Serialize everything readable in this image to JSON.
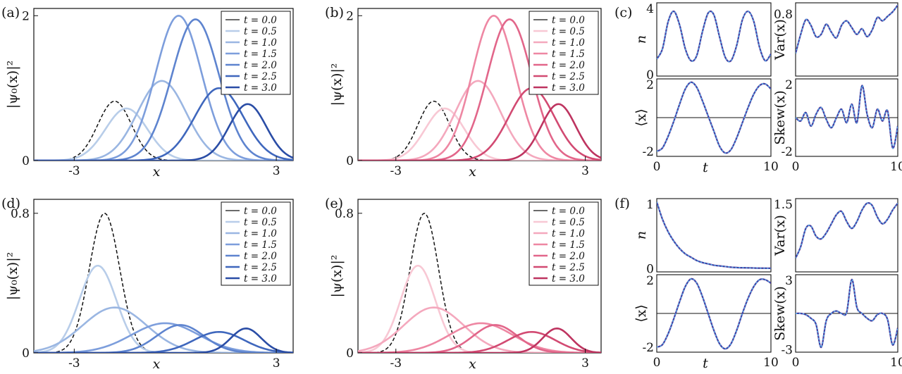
{
  "figure": {
    "panels": [
      {
        "id": "a",
        "label": "(a)",
        "xlabel": "x",
        "ylabel": "|ψ₀(x)|²",
        "xticks": [
          "-3",
          "3"
        ],
        "yticks": [
          "0",
          "2"
        ],
        "legend": [
          "t = 0.0",
          "t = 0.5",
          "t = 1.0",
          "t = 1.5",
          "t = 2.0",
          "t = 2.5",
          "t = 3.0"
        ]
      },
      {
        "id": "b",
        "label": "(b)",
        "xlabel": "x",
        "ylabel": "|ψ(x)|²",
        "xticks": [
          "-3",
          "3"
        ],
        "yticks": [
          "0",
          "2"
        ],
        "legend": [
          "t = 0.0",
          "t = 0.5",
          "t = 1.0",
          "t = 1.5",
          "t = 2.0",
          "t = 2.5",
          "t = 3.0"
        ]
      },
      {
        "id": "c",
        "label": "(c)"
      },
      {
        "id": "d",
        "label": "(d)",
        "xlabel": "x",
        "ylabel": "|ψ₀(x)|²",
        "xticks": [
          "-3",
          "3"
        ],
        "yticks": [
          "0",
          "0.8"
        ],
        "legend": [
          "t = 0.0",
          "t = 0.5",
          "t = 1.0",
          "t = 1.5",
          "t = 2.0",
          "t = 2.5",
          "t = 3.0"
        ]
      },
      {
        "id": "e",
        "label": "(e)",
        "xlabel": "x",
        "ylabel": "|ψ(x)|²",
        "xticks": [
          "-3",
          "3"
        ],
        "yticks": [
          "0",
          "0.8"
        ],
        "legend": [
          "t = 0.0",
          "t = 0.5",
          "t = 1.0",
          "t = 1.5",
          "t = 2.0",
          "t = 2.5",
          "t = 3.0"
        ]
      },
      {
        "id": "f",
        "label": "(f)"
      }
    ],
    "small_panels": {
      "c": [
        {
          "ylabel": "n",
          "yticks": [
            "0",
            "4"
          ]
        },
        {
          "ylabel": "Var(x)",
          "yticks": [
            "0.8"
          ]
        },
        {
          "ylabel": "⟨x⟩",
          "yticks": [
            "2",
            "-2"
          ],
          "xticks": [
            "0",
            "10"
          ],
          "xlabel": "t"
        },
        {
          "ylabel": "Skew(x)",
          "yticks": [
            "2",
            "-2"
          ],
          "xticks": [
            "0",
            "10"
          ]
        }
      ],
      "f": [
        {
          "ylabel": "n",
          "yticks": [
            "1",
            "0"
          ]
        },
        {
          "ylabel": "Var(x)",
          "yticks": [
            "1.5"
          ]
        },
        {
          "ylabel": "⟨x⟩",
          "yticks": [
            "2",
            "-2"
          ],
          "xticks": [
            "0",
            "10"
          ],
          "xlabel": "t"
        },
        {
          "ylabel": "Skew(x)",
          "yticks": [
            "3",
            "-3"
          ],
          "xticks": [
            "0",
            "10"
          ]
        }
      ]
    }
  },
  "colors": {
    "blue": [
      "#b8cde9",
      "#9ab6e2",
      "#7d9edc",
      "#5e84cf",
      "#3f67bd",
      "#2a4da6",
      "#1a3585"
    ],
    "red": [
      "#f8c8d4",
      "#f4a8bd",
      "#ee87a3",
      "#e2668a",
      "#d24a72",
      "#be3460",
      "#a31f4c"
    ],
    "dashed": "#111111",
    "dotted_overlay": "#5aa8e8"
  },
  "chart_data": [
    {
      "panel": "a",
      "type": "line",
      "xlim": [
        -4.2,
        3.5
      ],
      "ylim": [
        0,
        2.1
      ],
      "xlabel": "x",
      "ylabel": "|ψ₀(x)|²",
      "series": [
        {
          "name": "t = 0.0",
          "style": "dashed",
          "center": -1.8,
          "height": 0.82,
          "width": 0.5
        },
        {
          "name": "t = 0.5",
          "center": -1.45,
          "height": 0.72,
          "width": 0.62
        },
        {
          "name": "t = 1.0",
          "center": -0.4,
          "height": 1.1,
          "width": 0.72
        },
        {
          "name": "t = 1.5",
          "center": 0.1,
          "height": 2.0,
          "width": 0.68
        },
        {
          "name": "t = 2.0",
          "center": 0.6,
          "height": 1.95,
          "width": 0.7
        },
        {
          "name": "t = 2.5",
          "center": 1.3,
          "height": 1.0,
          "width": 0.72
        },
        {
          "name": "t = 3.0",
          "center": 2.15,
          "height": 0.78,
          "width": 0.55
        }
      ]
    },
    {
      "panel": "b",
      "type": "line",
      "xlim": [
        -4.2,
        3.5
      ],
      "ylim": [
        0,
        2.1
      ],
      "xlabel": "x",
      "ylabel": "|ψ(x)|²",
      "series": [
        {
          "name": "t = 0.0",
          "style": "dashed",
          "center": -1.8,
          "height": 0.82,
          "width": 0.5
        },
        {
          "name": "t = 0.5",
          "center": -1.45,
          "height": 0.72,
          "width": 0.62
        },
        {
          "name": "t = 1.0",
          "center": -0.4,
          "height": 1.1,
          "width": 0.72
        },
        {
          "name": "t = 1.5",
          "center": 0.1,
          "height": 2.0,
          "width": 0.68
        },
        {
          "name": "t = 2.0",
          "center": 0.6,
          "height": 1.95,
          "width": 0.7
        },
        {
          "name": "t = 2.5",
          "center": 1.3,
          "height": 1.0,
          "width": 0.72
        },
        {
          "name": "t = 3.0",
          "center": 2.15,
          "height": 0.78,
          "width": 0.55
        }
      ]
    },
    {
      "panel": "d",
      "type": "line",
      "xlim": [
        -4.2,
        3.5
      ],
      "ylim": [
        0,
        0.88
      ],
      "xlabel": "x",
      "ylabel": "|ψ₀(x)|²",
      "series": [
        {
          "name": "t = 0.0",
          "style": "dashed",
          "center": -2.1,
          "height": 0.8,
          "width": 0.45
        },
        {
          "name": "t = 0.5",
          "center": -2.3,
          "height": 0.5,
          "width": 0.55
        },
        {
          "name": "t = 1.0",
          "center": -1.8,
          "height": 0.26,
          "width": 0.95
        },
        {
          "name": "t = 1.5",
          "center": -0.3,
          "height": 0.17,
          "width": 1.0
        },
        {
          "name": "t = 2.0",
          "center": 0.15,
          "height": 0.16,
          "width": 0.7
        },
        {
          "name": "t = 2.5",
          "center": 1.3,
          "height": 0.12,
          "width": 0.75
        },
        {
          "name": "t = 3.0",
          "center": 2.1,
          "height": 0.14,
          "width": 0.45
        }
      ]
    },
    {
      "panel": "e",
      "type": "line",
      "xlim": [
        -4.2,
        3.5
      ],
      "ylim": [
        0,
        0.88
      ],
      "xlabel": "x",
      "ylabel": "|ψ(x)|²",
      "series": [
        {
          "name": "t = 0.0",
          "style": "dashed",
          "center": -2.1,
          "height": 0.8,
          "width": 0.45
        },
        {
          "name": "t = 0.5",
          "center": -2.3,
          "height": 0.5,
          "width": 0.55
        },
        {
          "name": "t = 1.0",
          "center": -1.8,
          "height": 0.26,
          "width": 0.95
        },
        {
          "name": "t = 1.5",
          "center": -0.3,
          "height": 0.17,
          "width": 1.0
        },
        {
          "name": "t = 2.0",
          "center": 0.15,
          "height": 0.16,
          "width": 0.7
        },
        {
          "name": "t = 2.5",
          "center": 1.3,
          "height": 0.12,
          "width": 0.75
        },
        {
          "name": "t = 3.0",
          "center": 2.1,
          "height": 0.14,
          "width": 0.45
        }
      ]
    },
    {
      "panel": "c",
      "type": "line",
      "xlim": [
        0,
        10
      ],
      "subplots": [
        {
          "ylabel": "n",
          "ylim": [
            0,
            4.3
          ],
          "t": [
            0,
            0.5,
            1,
            1.5,
            2,
            2.5,
            3,
            3.5,
            4,
            4.5,
            5,
            5.5,
            6,
            6.5,
            7,
            7.5,
            8,
            8.5,
            9,
            9.5,
            10
          ],
          "y": [
            1.0,
            1.6,
            3.2,
            3.8,
            3.0,
            1.6,
            0.9,
            1.2,
            2.6,
            3.7,
            3.6,
            2.3,
            1.1,
            0.9,
            1.8,
            3.3,
            3.8,
            3.2,
            1.7,
            0.9,
            1.3
          ]
        },
        {
          "ylabel": "Var(x)",
          "ylim": [
            0.25,
            0.9
          ],
          "t": [
            0,
            0.5,
            1,
            1.5,
            2,
            2.5,
            3,
            3.5,
            4,
            4.5,
            5,
            5.5,
            6,
            6.5,
            7,
            7.5,
            8,
            8.5,
            9,
            9.5,
            10
          ],
          "y": [
            0.45,
            0.62,
            0.75,
            0.7,
            0.6,
            0.62,
            0.71,
            0.64,
            0.59,
            0.7,
            0.74,
            0.68,
            0.62,
            0.67,
            0.6,
            0.66,
            0.77,
            0.74,
            0.78,
            0.82,
            0.88
          ]
        },
        {
          "ylabel": "⟨x⟩",
          "ylim": [
            -2.3,
            2.3
          ],
          "t": [
            0,
            0.5,
            1,
            1.5,
            2,
            2.5,
            3,
            3.5,
            4,
            4.5,
            5,
            5.5,
            6,
            6.5,
            7,
            7.5,
            8,
            8.5,
            9,
            9.5,
            10
          ],
          "y": [
            -2.0,
            -1.8,
            -1.1,
            -0.2,
            0.8,
            1.7,
            2.1,
            1.8,
            1.0,
            0.1,
            -0.8,
            -1.7,
            -2.1,
            -1.9,
            -1.2,
            -0.3,
            0.6,
            1.4,
            1.9,
            2.0,
            1.7
          ]
        },
        {
          "ylabel": "Skew(x)",
          "ylim": [
            -2.3,
            2.3
          ],
          "t": [
            0,
            0.5,
            1,
            1.5,
            2,
            2.5,
            3,
            3.5,
            4,
            4.5,
            5,
            5.5,
            6,
            6.5,
            7,
            7.5,
            8,
            8.5,
            9,
            9.5,
            10
          ],
          "y": [
            0.0,
            -0.2,
            0.3,
            -0.5,
            0.2,
            0.6,
            -0.1,
            -0.6,
            0.0,
            0.5,
            -0.3,
            0.8,
            -0.3,
            1.9,
            0.2,
            -0.6,
            0.5,
            -0.2,
            0.4,
            -1.8,
            -0.5
          ]
        }
      ]
    },
    {
      "panel": "f",
      "type": "line",
      "xlim": [
        0,
        10
      ],
      "subplots": [
        {
          "ylabel": "n",
          "ylim": [
            -0.05,
            1.05
          ],
          "t": [
            0,
            0.5,
            1,
            1.5,
            2,
            2.5,
            3,
            3.5,
            4,
            4.5,
            5,
            5.5,
            6,
            6.5,
            7,
            7.5,
            8,
            8.5,
            9,
            9.5,
            10
          ],
          "y": [
            1.0,
            0.74,
            0.55,
            0.41,
            0.3,
            0.22,
            0.17,
            0.12,
            0.09,
            0.07,
            0.05,
            0.04,
            0.03,
            0.02,
            0.015,
            0.012,
            0.01,
            0.008,
            0.006,
            0.005,
            0.004
          ]
        },
        {
          "ylabel": "Var(x)",
          "ylim": [
            0.0,
            1.6
          ],
          "t": [
            0,
            0.5,
            1,
            1.5,
            2,
            2.5,
            3,
            3.5,
            4,
            4.5,
            5,
            5.5,
            6,
            6.5,
            7,
            7.5,
            8,
            8.5,
            9,
            9.5,
            10
          ],
          "y": [
            0.3,
            0.55,
            0.95,
            1.0,
            0.78,
            0.72,
            0.85,
            1.05,
            1.25,
            1.32,
            1.1,
            0.95,
            1.1,
            1.35,
            1.5,
            1.45,
            1.2,
            1.05,
            1.15,
            1.35,
            1.5
          ]
        },
        {
          "ylabel": "⟨x⟩",
          "ylim": [
            -2.3,
            2.3
          ],
          "t": [
            0,
            0.5,
            1,
            1.5,
            2,
            2.5,
            3,
            3.5,
            4,
            4.5,
            5,
            5.5,
            6,
            6.5,
            7,
            7.5,
            8,
            8.5,
            9,
            9.5,
            10
          ],
          "y": [
            -2.0,
            -1.85,
            -1.2,
            -0.3,
            0.7,
            1.6,
            2.05,
            1.8,
            1.0,
            0.0,
            -1.0,
            -1.8,
            -2.1,
            -1.8,
            -1.0,
            0.0,
            0.9,
            1.6,
            2.0,
            2.0,
            1.8
          ]
        },
        {
          "ylabel": "Skew(x)",
          "ylim": [
            -3.2,
            3.2
          ],
          "t": [
            0,
            0.5,
            1,
            1.5,
            2,
            2.5,
            3,
            3.5,
            4,
            4.5,
            5,
            5.5,
            6,
            6.5,
            7,
            7.5,
            8,
            8.5,
            9,
            9.5,
            10
          ],
          "y": [
            0.0,
            0.0,
            -0.1,
            -0.4,
            -0.9,
            -2.8,
            -0.6,
            0.0,
            0.2,
            0.0,
            0.1,
            2.8,
            0.5,
            0.0,
            -0.4,
            -0.6,
            -0.1,
            0.0,
            -0.5,
            -2.6,
            -1.2
          ]
        }
      ]
    }
  ]
}
